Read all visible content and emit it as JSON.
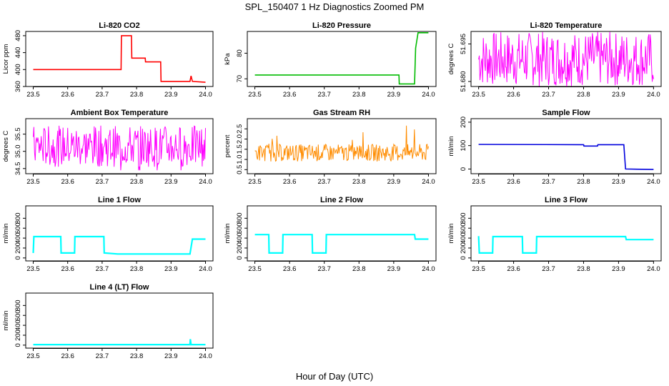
{
  "figure": {
    "title": "SPL_150407  1 Hz Diagnostics Zoomed PM",
    "xlabel": "Hour of Day (UTC)"
  },
  "chart_data": [
    {
      "type": "line",
      "title": "Li-820 CO2",
      "ylabel": "Licor ppm",
      "color": "#ff0000",
      "xlim": [
        23.5,
        24.0
      ],
      "xticks": [
        "23.5",
        "23.6",
        "23.7",
        "23.8",
        "23.9",
        "24.0"
      ],
      "ylim": [
        360,
        490
      ],
      "yticks": [
        360,
        400,
        440,
        480
      ],
      "x": [
        23.5,
        23.755,
        23.756,
        23.785,
        23.786,
        23.825,
        23.826,
        23.87,
        23.871,
        23.955,
        23.958,
        23.962,
        24.0
      ],
      "y": [
        400,
        400,
        480,
        480,
        427,
        427,
        418,
        418,
        372,
        372,
        385,
        372,
        370
      ]
    },
    {
      "type": "line",
      "title": "Li-820 Pressure",
      "ylabel": "kPa",
      "color": "#00bb00",
      "xlim": [
        23.5,
        24.0
      ],
      "xticks": [
        "23.5",
        "23.6",
        "23.7",
        "23.8",
        "23.9",
        "24.0"
      ],
      "ylim": [
        67,
        88.5
      ],
      "yticks": [
        70,
        80
      ],
      "x": [
        23.5,
        23.915,
        23.916,
        23.96,
        23.963,
        23.97,
        24.0
      ],
      "y": [
        71.5,
        71.5,
        68.0,
        68.0,
        82.0,
        88.0,
        88.0
      ]
    },
    {
      "type": "line",
      "title": "Li-820 Temperature",
      "ylabel": "degrees C",
      "color": "#ff00ff",
      "xlim": [
        23.5,
        24.0
      ],
      "xticks": [
        "23.5",
        "23.6",
        "23.7",
        "23.8",
        "23.9",
        "24.0"
      ],
      "ylim": [
        51.678,
        51.7
      ],
      "yticks": [
        "51.680",
        "51.695"
      ],
      "band": [
        51.678,
        51.7
      ]
    },
    {
      "type": "line",
      "title": "Ambient Box Temperature",
      "ylabel": "degrees C",
      "color": "#ff00ff",
      "xlim": [
        23.5,
        24.0
      ],
      "xticks": [
        "23.5",
        "23.6",
        "23.7",
        "23.8",
        "23.9",
        "24.0"
      ],
      "ylim": [
        34.35,
        35.95
      ],
      "yticks": [
        "34.5",
        "35.0",
        "35.5"
      ],
      "band": [
        34.55,
        35.75
      ]
    },
    {
      "type": "line",
      "title": "Gas Stream RH",
      "ylabel": "percent",
      "color": "#ff8c00",
      "xlim": [
        23.5,
        24.0
      ],
      "xticks": [
        "23.5",
        "23.6",
        "23.7",
        "23.8",
        "23.9",
        "24.0"
      ],
      "ylim": [
        0.3,
        3.0
      ],
      "yticks": [
        "0.5",
        "1.0",
        "1.5",
        "2.0",
        "2.5"
      ],
      "band": [
        0.9,
        1.75
      ]
    },
    {
      "type": "line",
      "title": "Sample Flow",
      "ylabel": "ml/min",
      "color": "#0000dd",
      "xlim": [
        23.5,
        24.0
      ],
      "xticks": [
        "23.5",
        "23.6",
        "23.7",
        "23.8",
        "23.9",
        "24.0"
      ],
      "ylim": [
        -20,
        215
      ],
      "yticks": [
        0,
        100,
        200
      ],
      "x": [
        23.5,
        23.8,
        23.801,
        23.84,
        23.841,
        23.915,
        23.92,
        24.0
      ],
      "y": [
        105,
        104,
        98,
        98,
        104,
        104,
        0,
        -2
      ]
    },
    {
      "type": "line",
      "title": "Line 1 Flow",
      "ylabel": "ml/min",
      "color": "#00ffff",
      "xlim": [
        23.5,
        24.0
      ],
      "xticks": [
        "23.5",
        "23.6",
        "23.7",
        "23.8",
        "23.9",
        "24.0"
      ],
      "ylim": [
        -60,
        1050
      ],
      "yticks": [
        0,
        200,
        400,
        600,
        800
      ],
      "x": [
        23.5,
        23.502,
        23.58,
        23.581,
        23.62,
        23.621,
        23.705,
        23.706,
        23.745,
        23.955,
        23.962,
        24.0
      ],
      "y": [
        100,
        430,
        430,
        100,
        100,
        430,
        430,
        100,
        80,
        80,
        380,
        380
      ]
    },
    {
      "type": "line",
      "title": "Line 2 Flow",
      "ylabel": "ml/min",
      "color": "#00ffff",
      "xlim": [
        23.5,
        24.0
      ],
      "xticks": [
        "23.5",
        "23.6",
        "23.7",
        "23.8",
        "23.9",
        "24.0"
      ],
      "ylim": [
        -60,
        1050
      ],
      "yticks": [
        0,
        200,
        400,
        600,
        800
      ],
      "x": [
        23.5,
        23.54,
        23.541,
        23.58,
        23.581,
        23.665,
        23.666,
        23.705,
        23.706,
        23.96,
        23.962,
        24.0
      ],
      "y": [
        470,
        470,
        100,
        100,
        470,
        470,
        100,
        100,
        470,
        470,
        380,
        380
      ]
    },
    {
      "type": "line",
      "title": "Line 3 Flow",
      "ylabel": "ml/min",
      "color": "#00ffff",
      "xlim": [
        23.5,
        24.0
      ],
      "xticks": [
        "23.5",
        "23.6",
        "23.7",
        "23.8",
        "23.9",
        "24.0"
      ],
      "ylim": [
        -60,
        1050
      ],
      "yticks": [
        0,
        200,
        400,
        600,
        800
      ],
      "x": [
        23.5,
        23.502,
        23.54,
        23.541,
        23.625,
        23.626,
        23.665,
        23.666,
        23.92,
        23.922,
        24.0
      ],
      "y": [
        440,
        100,
        100,
        430,
        430,
        100,
        100,
        430,
        430,
        370,
        370
      ]
    },
    {
      "type": "line",
      "title": "Line 4 (LT) Flow",
      "ylabel": "ml/min",
      "color": "#00ffff",
      "xlim": [
        23.5,
        24.0
      ],
      "xticks": [
        "23.5",
        "23.6",
        "23.7",
        "23.8",
        "23.9",
        "24.0"
      ],
      "ylim": [
        -60,
        1050
      ],
      "yticks": [
        0,
        200,
        400,
        600,
        800
      ],
      "x": [
        23.5,
        23.955,
        23.956,
        23.958,
        23.96,
        24.0
      ],
      "y": [
        10,
        10,
        120,
        10,
        10,
        10
      ]
    }
  ]
}
